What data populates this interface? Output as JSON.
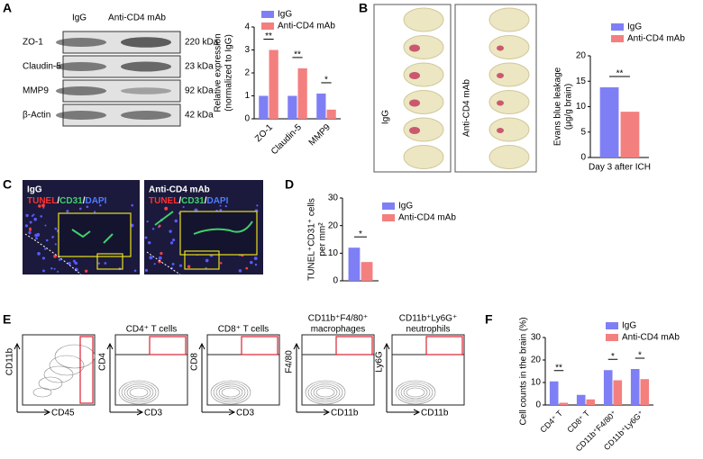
{
  "panels": {
    "labels": [
      "A",
      "B",
      "C",
      "D",
      "E",
      "F"
    ]
  },
  "blot": {
    "groups": [
      "IgG",
      "Anti-CD4 mAb"
    ],
    "rows": [
      {
        "protein": "ZO-1",
        "size": "220 kDa"
      },
      {
        "protein": "Claudin-5",
        "size": "23 kDa"
      },
      {
        "protein": "MMP9",
        "size": "92 kDa"
      },
      {
        "protein": "β-Actin",
        "size": "42 kDa"
      }
    ]
  },
  "brain_images": {
    "groups": [
      "IgG",
      "Anti-CD4 mAb"
    ]
  },
  "micrographs": {
    "groups": [
      "IgG",
      "Anti-CD4 mAb"
    ],
    "stain": [
      "TUNEL",
      "/",
      "CD31",
      "/",
      "DAPI"
    ]
  },
  "flow": {
    "plots": [
      {
        "title": [],
        "x": "CD45",
        "y": "CD11b"
      },
      {
        "title": [
          "CD4⁺ T cells"
        ],
        "x": "CD3",
        "y": "CD4"
      },
      {
        "title": [
          "CD8⁺ T cells"
        ],
        "x": "CD3",
        "y": "CD8"
      },
      {
        "title": [
          "CD11b⁺F4/80⁺",
          "macrophages"
        ],
        "x": "CD11b",
        "y": "F4/80"
      },
      {
        "title": [
          "CD11b⁺Ly6G⁺",
          "neutrophils"
        ],
        "x": "CD11b",
        "y": "Ly6G"
      }
    ]
  },
  "chart_data": [
    {
      "type": "bar",
      "ylabel": [
        "Relative expression",
        "(normalized to IgG)"
      ],
      "categories": [
        "ZO-1",
        "Claudin-5",
        "MMP9"
      ],
      "series": [
        {
          "name": "IgG",
          "color": "#7f7ff5",
          "values": [
            1,
            1,
            1.1
          ]
        },
        {
          "name": "Anti-CD4 mAb",
          "color": "#f47f7f",
          "values": [
            3.0,
            2.2,
            0.4
          ]
        }
      ],
      "significance": [
        "**",
        "**",
        "*"
      ],
      "ylim": [
        0,
        4
      ],
      "yticks": [
        0,
        1,
        2,
        3,
        4
      ]
    },
    {
      "type": "bar",
      "ylabel": [
        "Evans blue  leakage",
        "(μg/g brain)"
      ],
      "categories": [
        "Day 3 after ICH"
      ],
      "series": [
        {
          "name": "IgG",
          "color": "#7f7ff5",
          "values": [
            13.8
          ]
        },
        {
          "name": "Anti-CD4 mAb",
          "color": "#f47f7f",
          "values": [
            9
          ]
        }
      ],
      "significance": [
        "**"
      ],
      "ylim": [
        0,
        20
      ],
      "yticks": [
        0,
        5,
        10,
        15,
        20
      ]
    },
    {
      "type": "bar",
      "ylabel": [
        "TUNEL⁺CD31⁺ cells",
        "per mm²"
      ],
      "series": [
        {
          "name": "IgG",
          "color": "#7f7ff5",
          "values": [
            12
          ]
        },
        {
          "name": "Anti-CD4 mAb",
          "color": "#f47f7f",
          "values": [
            6.8
          ]
        }
      ],
      "significance": [
        "*"
      ],
      "ylim": [
        0,
        30
      ],
      "yticks": [
        0,
        10,
        20,
        30
      ]
    },
    {
      "type": "bar",
      "ylabel": [
        "Cell counts in the brain (%)"
      ],
      "categories": [
        "CD4⁺ T",
        "CD8⁺ T",
        "CD11b⁺F4/80⁺",
        "CD11b⁺Ly6G⁺"
      ],
      "series": [
        {
          "name": "IgG",
          "color": "#7f7ff5",
          "values": [
            10.5,
            4.5,
            15.5,
            16
          ]
        },
        {
          "name": "Anti-CD4 mAb",
          "color": "#f47f7f",
          "values": [
            1,
            2.5,
            11,
            11.5
          ]
        }
      ],
      "significance": [
        "**",
        null,
        "*",
        "*"
      ],
      "ylim": [
        0,
        30
      ],
      "yticks": [
        0,
        10,
        20,
        30
      ]
    }
  ]
}
